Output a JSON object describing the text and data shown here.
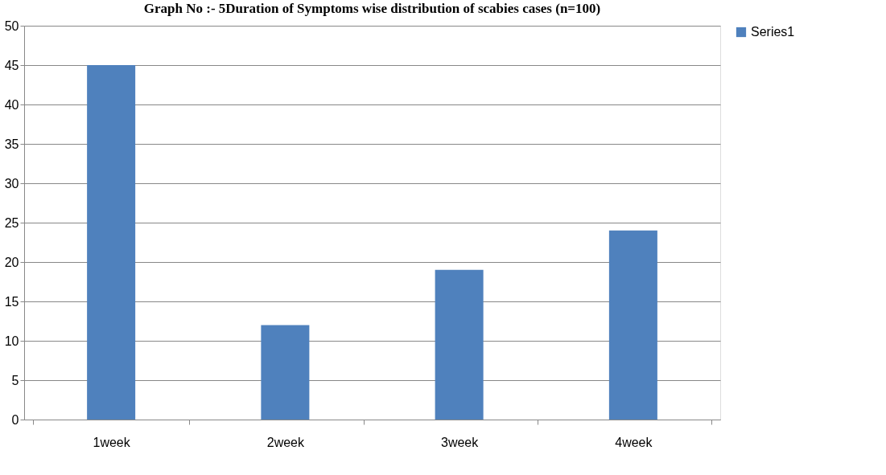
{
  "chart_data": {
    "type": "bar",
    "title": "Graph No :- 5Duration of Symptoms wise distribution of scabies cases (n=100)",
    "categories": [
      "1week",
      "2week",
      "3week",
      "4week"
    ],
    "series": [
      {
        "name": "Series1",
        "color": "#4f81bd",
        "values": [
          45,
          12,
          19,
          24
        ]
      }
    ],
    "ylim": [
      0,
      50
    ],
    "yticks": [
      0,
      5,
      10,
      15,
      20,
      25,
      30,
      35,
      40,
      45,
      50
    ],
    "grid": "y",
    "legend": "right"
  }
}
